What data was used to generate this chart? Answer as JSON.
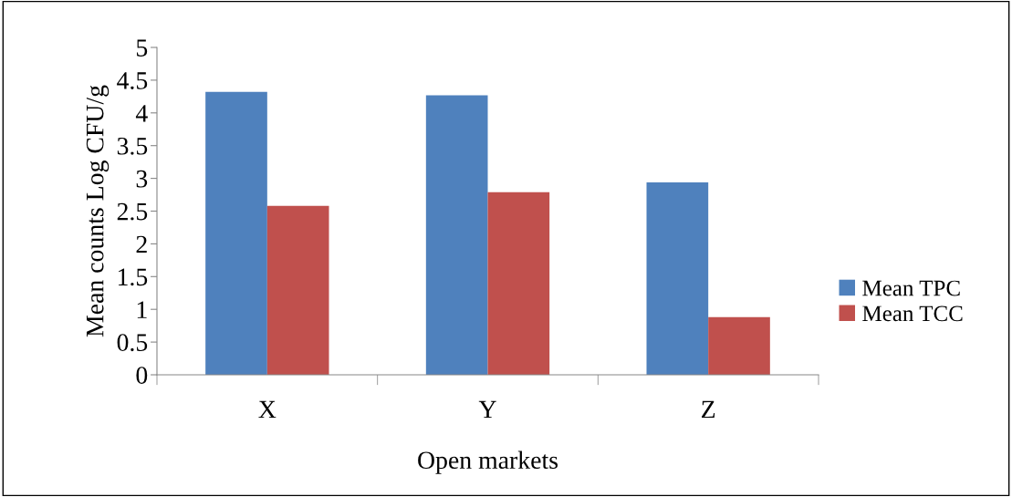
{
  "chart_data": {
    "type": "bar",
    "xlabel": "Open markets",
    "ylabel": "Mean counts Log CFU/g",
    "categories": [
      "X",
      "Y",
      "Z"
    ],
    "series": [
      {
        "name": "Mean TPC",
        "color": "#4f81bd",
        "values": [
          4.32,
          4.27,
          2.94
        ]
      },
      {
        "name": "Mean TCC",
        "color": "#c0504d",
        "values": [
          2.58,
          2.79,
          0.88
        ]
      }
    ],
    "ylim": [
      0,
      5
    ],
    "yticks": [
      0,
      0.5,
      1,
      1.5,
      2,
      2.5,
      3,
      3.5,
      4,
      4.5,
      5
    ],
    "grid": false,
    "legend": "right"
  }
}
